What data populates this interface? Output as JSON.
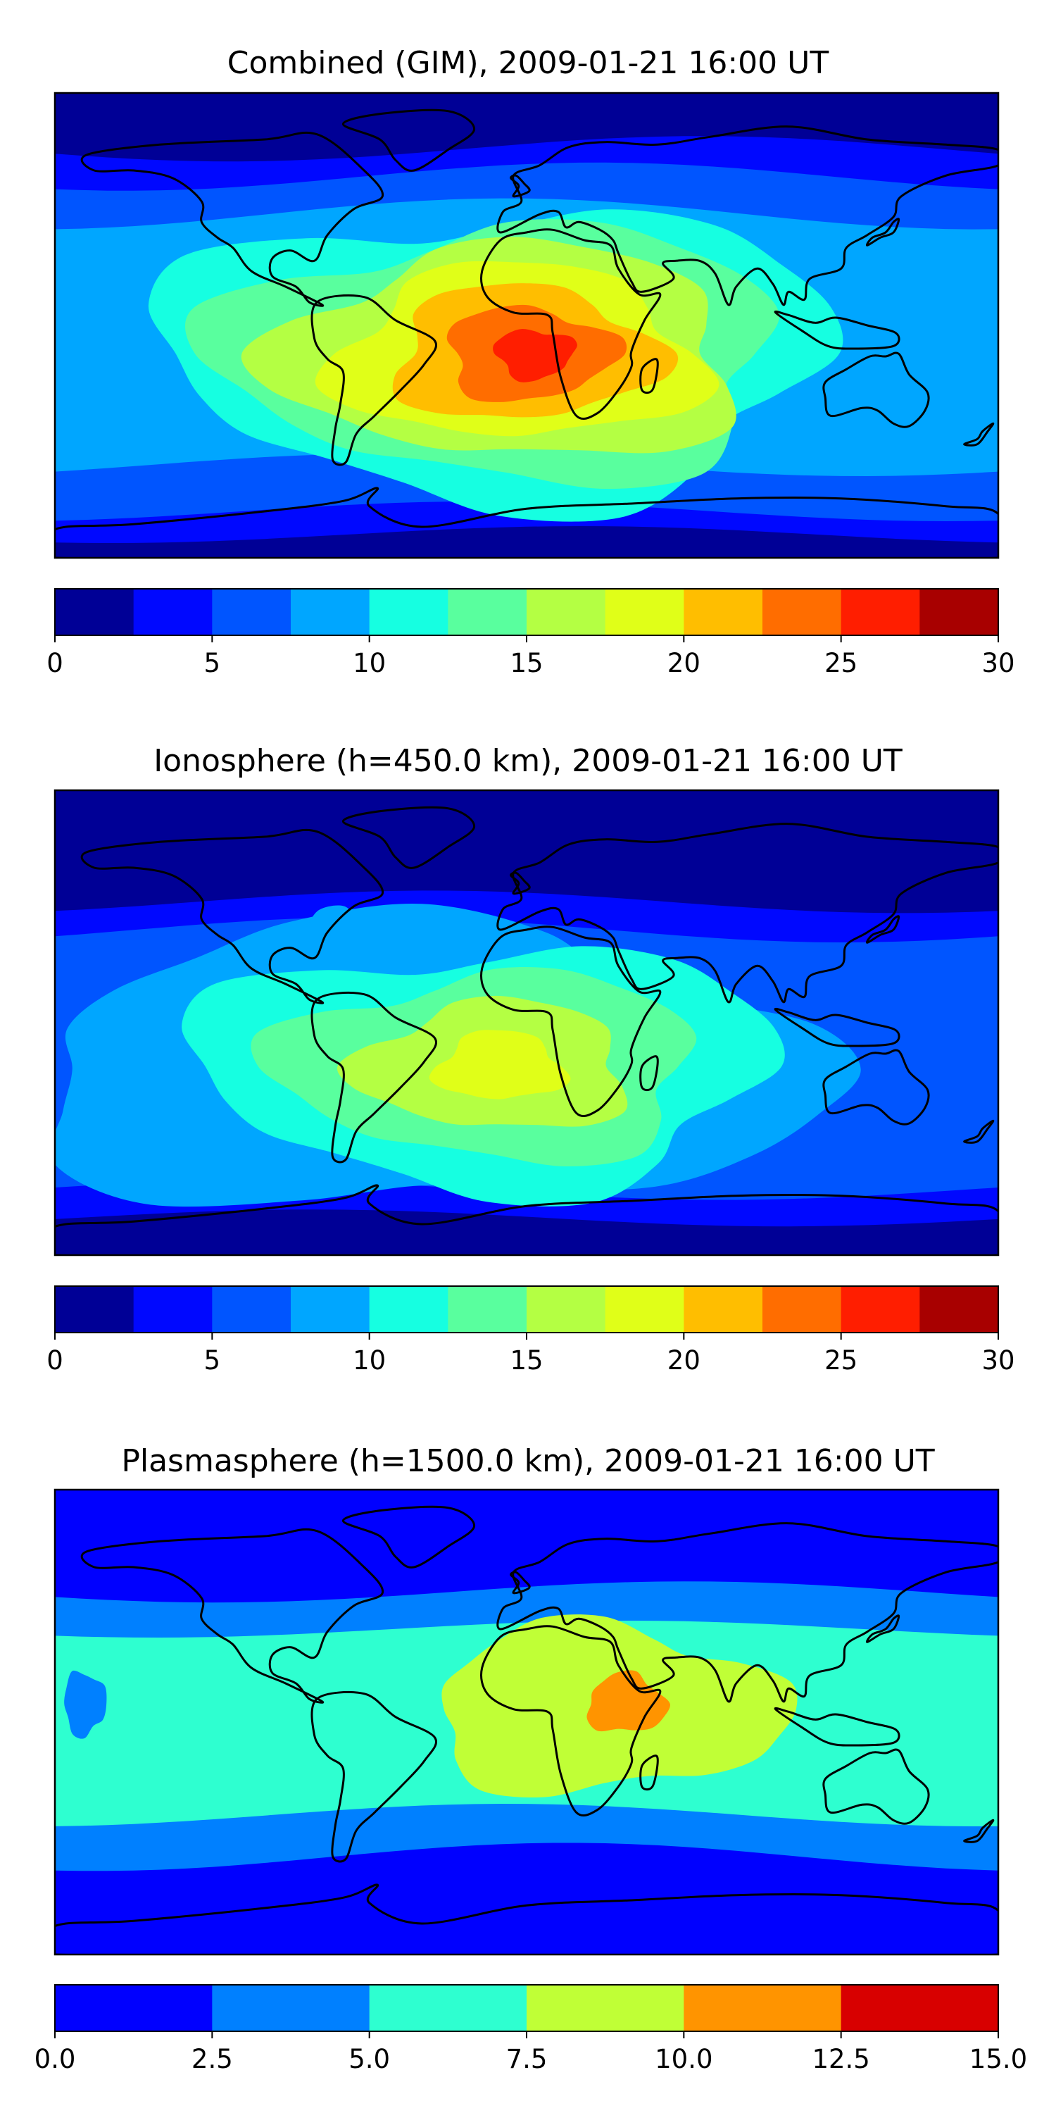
{
  "colors": {
    "jet12": [
      "#000096",
      "#0008ff",
      "#0055ff",
      "#00a6ff",
      "#16ffe1",
      "#59ff9e",
      "#b4ff43",
      "#e0ff18",
      "#ffbe00",
      "#ff6d00",
      "#ff1e00",
      "#a80000"
    ],
    "jet6": [
      "#0000ff",
      "#0080ff",
      "#2effd0",
      "#c0ff36",
      "#ff9400",
      "#d80000"
    ],
    "land_outline": "#000000"
  },
  "chart_data": [
    {
      "type": "heatmap",
      "title": "Combined (GIM), 2009-01-21 16:00 UT",
      "levels": [
        0,
        2.5,
        5,
        7.5,
        10,
        12.5,
        15,
        17.5,
        20,
        22.5,
        25,
        27.5,
        30
      ],
      "colorbar_ticks": [
        "0",
        "5",
        "10",
        "15",
        "20",
        "25",
        "30"
      ],
      "colorbar_tick_values": [
        0,
        5,
        10,
        15,
        20,
        25,
        30
      ],
      "peak_region": "South America / southern Africa",
      "peak_value": 26
    },
    {
      "type": "heatmap",
      "title": "Ionosphere  (h=450.0 km), 2009-01-21 16:00 UT",
      "levels": [
        0,
        2.5,
        5,
        7.5,
        10,
        12.5,
        15,
        17.5,
        20,
        22.5,
        25,
        27.5,
        30
      ],
      "colorbar_ticks": [
        "0",
        "5",
        "10",
        "15",
        "20",
        "25",
        "30"
      ],
      "colorbar_tick_values": [
        0,
        5,
        10,
        15,
        20,
        25,
        30
      ],
      "peak_region": "South Atlantic / southern Africa",
      "peak_value": 18
    },
    {
      "type": "heatmap",
      "title": "Plasmasphere (h=1500.0 km), 2009-01-21 16:00 UT",
      "levels": [
        0,
        2.5,
        5,
        7.5,
        10,
        12.5,
        15
      ],
      "colorbar_ticks": [
        "0.0",
        "2.5",
        "5.0",
        "7.5",
        "10.0",
        "12.5",
        "15.0"
      ],
      "colorbar_tick_values": [
        0,
        2.5,
        5,
        7.5,
        10,
        12.5,
        15
      ],
      "peak_region": "Horn of Africa",
      "peak_value": 11
    }
  ]
}
